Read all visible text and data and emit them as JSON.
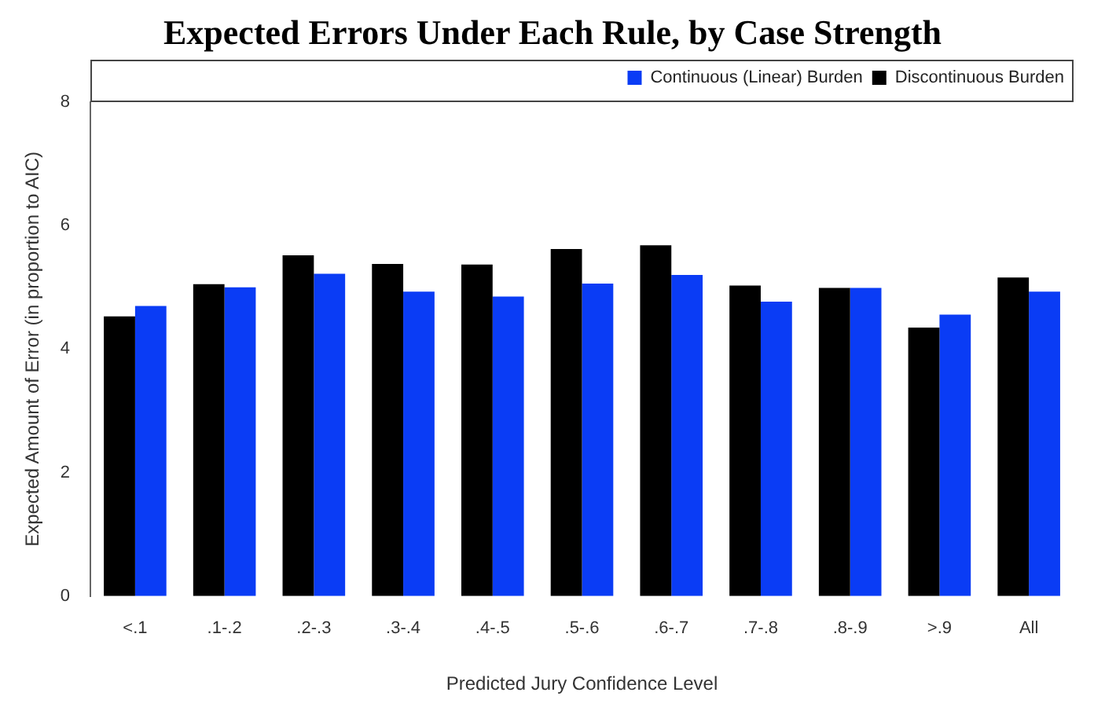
{
  "chart_data": {
    "type": "bar",
    "title": "Expected Errors Under Each Rule, by Case Strength",
    "xlabel": "Predicted Jury Confidence Level",
    "ylabel": "Expected Amount of Error (in proportion to AIC)",
    "categories": [
      "<.1",
      ".1-.2",
      ".2-.3",
      ".3-.4",
      ".4-.5",
      ".5-.6",
      ".6-.7",
      ".7-.8",
      ".8-.9",
      ">.9",
      "All"
    ],
    "series": [
      {
        "name": "Discontinuous Burden",
        "color": "#000000",
        "values": [
          4.53,
          5.05,
          5.52,
          5.38,
          5.37,
          5.62,
          5.68,
          5.03,
          4.99,
          4.35,
          5.16
        ]
      },
      {
        "name": "Continuous (Linear) Burden",
        "color": "#0a3cf5",
        "values": [
          4.7,
          5.0,
          5.22,
          4.93,
          4.85,
          5.06,
          5.2,
          4.77,
          4.99,
          4.56,
          4.93
        ]
      }
    ],
    "ylim": [
      0,
      8
    ],
    "yticks": [
      0,
      2,
      4,
      6,
      8
    ],
    "grid": false,
    "legend": "top right"
  }
}
